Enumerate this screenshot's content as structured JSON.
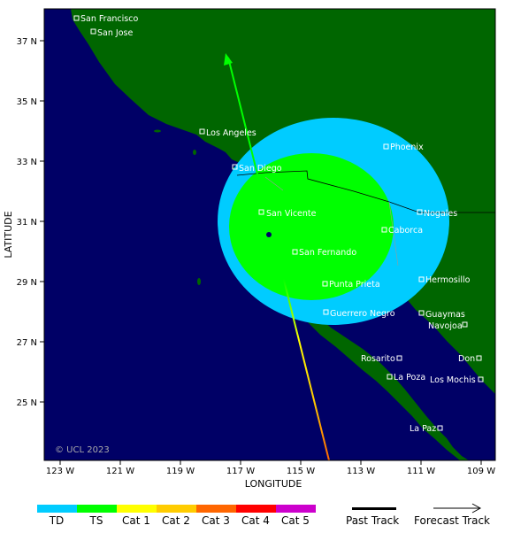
{
  "map": {
    "xlabel": "LONGITUDE",
    "ylabel": "LATITUDE",
    "copyright": "© UCL 2023",
    "lon_ticks": [
      "123 W",
      "121 W",
      "119 W",
      "117 W",
      "115 W",
      "113 W",
      "111 W",
      "109 W"
    ],
    "lat_ticks": [
      "37 N",
      "35 N",
      "33 N",
      "31 N",
      "29 N",
      "27 N",
      "25 N"
    ],
    "colors": {
      "ocean": "#000066",
      "land": "#006600",
      "ts_zone": "#00ff00",
      "td_zone": "#00ccff"
    },
    "cities": [
      "San Francisco",
      "San Jose",
      "Los Angeles",
      "Phoenix",
      "San Diego",
      "San Vicente",
      "Nogales",
      "Caborca",
      "San Fernando",
      "Hermosillo",
      "Punta Prieta",
      "Guerrero Negro",
      "Guaymas",
      "Navojoa",
      "Rosarito",
      "Don",
      "La Poza",
      "Los Mochis",
      "La Paz"
    ]
  },
  "legend": {
    "categories": [
      {
        "label": "TD",
        "color": "#00ccff"
      },
      {
        "label": "TS",
        "color": "#00ff00"
      },
      {
        "label": "Cat 1",
        "color": "#ffff00"
      },
      {
        "label": "Cat 2",
        "color": "#ffcc00"
      },
      {
        "label": "Cat 3",
        "color": "#ff6600"
      },
      {
        "label": "Cat 4",
        "color": "#ff0000"
      },
      {
        "label": "Cat 5",
        "color": "#cc00cc"
      }
    ],
    "past_track": "Past Track",
    "forecast_track": "Forecast Track"
  }
}
